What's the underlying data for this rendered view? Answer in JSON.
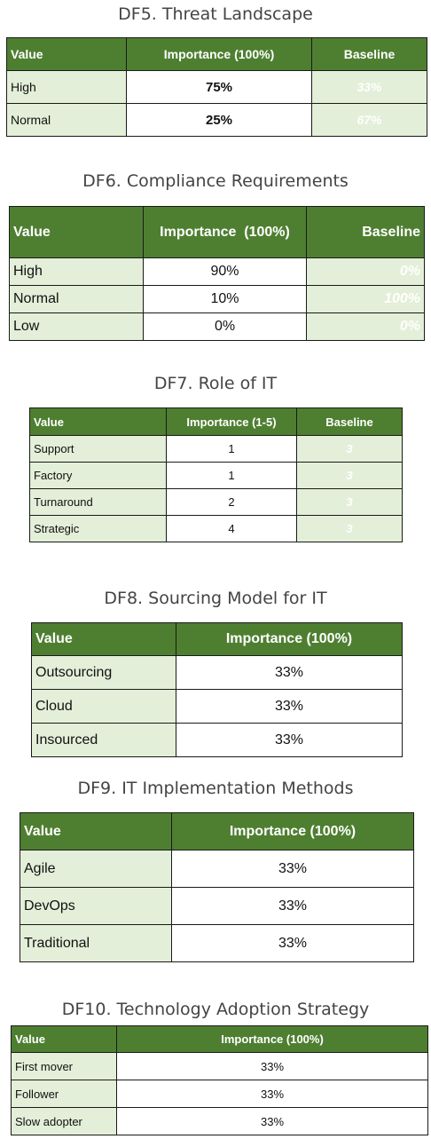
{
  "df5": {
    "title": "DF5. Threat Landscape",
    "headers": [
      "Value",
      "Importance (100%)",
      "Baseline"
    ],
    "rows": [
      {
        "label": "High",
        "importance": "75%",
        "baseline": "33%"
      },
      {
        "label": "Normal",
        "importance": "25%",
        "baseline": "67%"
      }
    ]
  },
  "df6": {
    "title": "DF6. Compliance Requirements",
    "headers": [
      "Value",
      "Importance  (100%)",
      "Baseline"
    ],
    "rows": [
      {
        "label": "High",
        "importance": "90%",
        "baseline": "0%"
      },
      {
        "label": "Normal",
        "importance": "10%",
        "baseline": "100%"
      },
      {
        "label": "Low",
        "importance": "0%",
        "baseline": "0%"
      }
    ]
  },
  "df7": {
    "title": "DF7. Role of IT",
    "headers": [
      "Value",
      "Importance (1-5)",
      "Baseline"
    ],
    "rows": [
      {
        "label": "Support",
        "importance": "1",
        "baseline": "3"
      },
      {
        "label": "Factory",
        "importance": "1",
        "baseline": "3"
      },
      {
        "label": "Turnaround",
        "importance": "2",
        "baseline": "3"
      },
      {
        "label": "Strategic",
        "importance": "4",
        "baseline": "3"
      }
    ]
  },
  "df8": {
    "title": "DF8. Sourcing Model for IT",
    "headers": [
      "Value",
      "Importance (100%)"
    ],
    "rows": [
      {
        "label": "Outsourcing",
        "importance": "33%"
      },
      {
        "label": "Cloud",
        "importance": "33%"
      },
      {
        "label": "Insourced",
        "importance": "33%"
      }
    ]
  },
  "df9": {
    "title": "DF9. IT Implementation Methods",
    "headers": [
      "Value",
      "Importance (100%)"
    ],
    "rows": [
      {
        "label": "Agile",
        "importance": "33%"
      },
      {
        "label": "DevOps",
        "importance": "33%"
      },
      {
        "label": "Traditional",
        "importance": "33%"
      }
    ]
  },
  "df10": {
    "title": "DF10. Technology Adoption Strategy",
    "headers": [
      "Value",
      "Importance (100%)"
    ],
    "rows": [
      {
        "label": "First mover",
        "importance": "33%"
      },
      {
        "label": "Follower",
        "importance": "33%"
      },
      {
        "label": "Slow adopter",
        "importance": "33%"
      }
    ]
  },
  "colors": {
    "header_green": "#4e7f31",
    "label_green": "#e3efd8",
    "title_gray": "#444444"
  }
}
